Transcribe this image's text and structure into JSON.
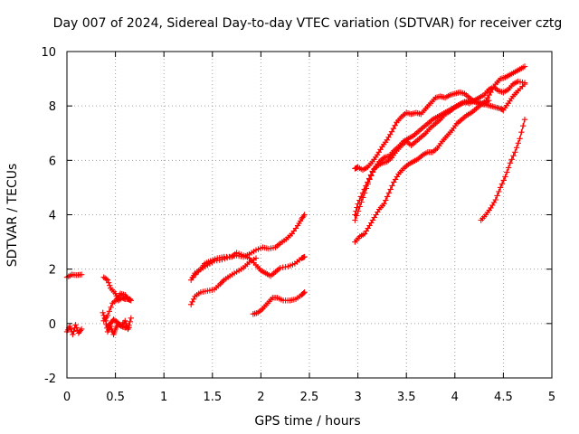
{
  "chart_data": {
    "type": "scatter",
    "title": "Day 007 of 2024, Sidereal Day-to-day VTEC variation (SDTVAR) for receiver cztg",
    "xlabel": "GPS time / hours",
    "ylabel": "SDTVAR / TECUs",
    "xlim": [
      0,
      5
    ],
    "ylim": [
      -2,
      10
    ],
    "xticks": [
      "0",
      "0.5",
      "1",
      "1.5",
      "2",
      "2.5",
      "3",
      "3.5",
      "4",
      "4.5",
      "5"
    ],
    "xtick_values": [
      0,
      0.5,
      1,
      1.5,
      2,
      2.5,
      3,
      3.5,
      4,
      4.5,
      5
    ],
    "yticks": [
      "-2",
      "0",
      "2",
      "4",
      "6",
      "8",
      "10"
    ],
    "ytick_values": [
      -2,
      0,
      2,
      4,
      6,
      8,
      10
    ],
    "grid": true,
    "marker": "+",
    "color": "#ff0000",
    "series": [
      {
        "name": "s1",
        "points": [
          [
            0.0,
            1.7
          ],
          [
            0.05,
            1.8
          ],
          [
            0.1,
            1.78
          ],
          [
            0.15,
            1.8
          ]
        ]
      },
      {
        "name": "s2",
        "points": [
          [
            0.0,
            -0.3
          ],
          [
            0.03,
            -0.1
          ],
          [
            0.06,
            -0.4
          ],
          [
            0.09,
            -0.05
          ],
          [
            0.12,
            -0.35
          ],
          [
            0.15,
            -0.2
          ]
        ]
      },
      {
        "name": "s3",
        "points": [
          [
            0.37,
            0.4
          ],
          [
            0.4,
            0.1
          ],
          [
            0.42,
            -0.3
          ],
          [
            0.45,
            -0.1
          ],
          [
            0.48,
            -0.4
          ],
          [
            0.5,
            -0.2
          ],
          [
            0.53,
            0.0
          ],
          [
            0.56,
            -0.1
          ],
          [
            0.6,
            0.1
          ],
          [
            0.63,
            -0.2
          ],
          [
            0.66,
            0.2
          ]
        ]
      },
      {
        "name": "s4",
        "points": [
          [
            0.38,
            1.7
          ],
          [
            0.42,
            1.6
          ],
          [
            0.45,
            1.3
          ],
          [
            0.5,
            1.1
          ],
          [
            0.53,
            0.85
          ],
          [
            0.57,
            0.95
          ],
          [
            0.6,
            0.9
          ],
          [
            0.65,
            0.9
          ]
        ]
      },
      {
        "name": "s5",
        "points": [
          [
            0.38,
            0.1
          ],
          [
            0.42,
            0.3
          ],
          [
            0.47,
            0.75
          ],
          [
            0.52,
            0.9
          ],
          [
            0.55,
            1.1
          ],
          [
            0.6,
            1.05
          ],
          [
            0.63,
            0.9
          ],
          [
            0.66,
            0.85
          ]
        ]
      },
      {
        "name": "s6",
        "points": [
          [
            0.42,
            -0.1
          ],
          [
            0.45,
            0.0
          ],
          [
            0.48,
            0.15
          ],
          [
            0.52,
            0.05
          ],
          [
            0.56,
            -0.1
          ],
          [
            0.6,
            -0.15
          ],
          [
            0.64,
            -0.15
          ]
        ]
      },
      {
        "name": "s7",
        "points": [
          [
            1.28,
            1.6
          ],
          [
            1.32,
            1.85
          ],
          [
            1.38,
            2.0
          ],
          [
            1.42,
            2.2
          ],
          [
            1.48,
            2.3
          ],
          [
            1.55,
            2.4
          ],
          [
            1.62,
            2.45
          ],
          [
            1.7,
            2.45
          ],
          [
            1.75,
            2.6
          ],
          [
            1.82,
            2.5
          ],
          [
            1.88,
            2.4
          ],
          [
            1.95,
            2.15
          ],
          [
            2.0,
            1.95
          ],
          [
            2.05,
            1.85
          ],
          [
            2.1,
            1.75
          ],
          [
            2.15,
            1.9
          ],
          [
            2.2,
            2.05
          ],
          [
            2.28,
            2.1
          ],
          [
            2.35,
            2.2
          ],
          [
            2.42,
            2.4
          ],
          [
            2.45,
            2.45
          ]
        ]
      },
      {
        "name": "s8",
        "points": [
          [
            1.3,
            1.7
          ],
          [
            1.38,
            2.0
          ],
          [
            1.45,
            2.15
          ],
          [
            1.52,
            2.3
          ],
          [
            1.6,
            2.35
          ],
          [
            1.68,
            2.45
          ],
          [
            1.75,
            2.5
          ],
          [
            1.82,
            2.45
          ],
          [
            1.88,
            2.55
          ],
          [
            1.95,
            2.7
          ],
          [
            2.02,
            2.8
          ],
          [
            2.08,
            2.75
          ],
          [
            2.15,
            2.8
          ],
          [
            2.2,
            2.95
          ],
          [
            2.26,
            3.1
          ],
          [
            2.32,
            3.3
          ],
          [
            2.38,
            3.6
          ],
          [
            2.42,
            3.85
          ],
          [
            2.45,
            4.0
          ]
        ]
      },
      {
        "name": "s9",
        "points": [
          [
            1.28,
            0.7
          ],
          [
            1.32,
            1.0
          ],
          [
            1.38,
            1.15
          ],
          [
            1.45,
            1.2
          ],
          [
            1.52,
            1.25
          ],
          [
            1.58,
            1.45
          ],
          [
            1.62,
            1.6
          ],
          [
            1.68,
            1.75
          ],
          [
            1.75,
            1.9
          ],
          [
            1.82,
            2.05
          ],
          [
            1.88,
            2.25
          ],
          [
            1.95,
            2.4
          ]
        ]
      },
      {
        "name": "s10",
        "points": [
          [
            1.92,
            0.35
          ],
          [
            1.97,
            0.4
          ],
          [
            2.02,
            0.55
          ],
          [
            2.07,
            0.75
          ],
          [
            2.12,
            0.95
          ],
          [
            2.17,
            0.95
          ],
          [
            2.23,
            0.85
          ],
          [
            2.3,
            0.85
          ],
          [
            2.36,
            0.9
          ],
          [
            2.42,
            1.05
          ],
          [
            2.45,
            1.15
          ]
        ]
      },
      {
        "name": "s11",
        "points": [
          [
            2.97,
            5.7
          ],
          [
            3.0,
            5.75
          ],
          [
            3.05,
            5.65
          ],
          [
            3.1,
            5.75
          ],
          [
            3.15,
            5.95
          ],
          [
            3.2,
            6.2
          ],
          [
            3.25,
            6.5
          ],
          [
            3.3,
            6.75
          ],
          [
            3.35,
            7.05
          ],
          [
            3.4,
            7.4
          ],
          [
            3.45,
            7.6
          ],
          [
            3.5,
            7.75
          ],
          [
            3.55,
            7.7
          ],
          [
            3.6,
            7.75
          ],
          [
            3.65,
            7.7
          ],
          [
            3.7,
            7.9
          ],
          [
            3.75,
            8.1
          ],
          [
            3.8,
            8.3
          ],
          [
            3.85,
            8.35
          ],
          [
            3.9,
            8.3
          ],
          [
            3.95,
            8.4
          ],
          [
            4.0,
            8.45
          ],
          [
            4.05,
            8.5
          ],
          [
            4.1,
            8.45
          ],
          [
            4.15,
            8.3
          ],
          [
            4.2,
            8.15
          ],
          [
            4.25,
            8.1
          ],
          [
            4.3,
            8.05
          ],
          [
            4.35,
            8.2
          ]
        ]
      },
      {
        "name": "s12",
        "points": [
          [
            2.97,
            4.0
          ],
          [
            3.0,
            4.4
          ],
          [
            3.05,
            4.8
          ],
          [
            3.1,
            5.2
          ],
          [
            3.15,
            5.6
          ],
          [
            3.2,
            5.8
          ],
          [
            3.25,
            5.9
          ],
          [
            3.3,
            5.95
          ],
          [
            3.35,
            6.1
          ],
          [
            3.4,
            6.35
          ],
          [
            3.45,
            6.55
          ],
          [
            3.5,
            6.7
          ],
          [
            3.55,
            6.55
          ],
          [
            3.6,
            6.7
          ],
          [
            3.65,
            6.85
          ],
          [
            3.7,
            7.0
          ],
          [
            3.75,
            7.2
          ],
          [
            3.8,
            7.35
          ],
          [
            3.85,
            7.5
          ],
          [
            3.9,
            7.7
          ],
          [
            3.95,
            7.8
          ],
          [
            4.0,
            7.95
          ],
          [
            4.05,
            8.05
          ],
          [
            4.1,
            8.15
          ],
          [
            4.15,
            8.1
          ],
          [
            4.2,
            8.2
          ],
          [
            4.25,
            8.3
          ],
          [
            4.3,
            8.4
          ],
          [
            4.35,
            8.6
          ],
          [
            4.4,
            8.7
          ],
          [
            4.45,
            8.55
          ],
          [
            4.5,
            8.5
          ],
          [
            4.55,
            8.6
          ],
          [
            4.6,
            8.8
          ],
          [
            4.65,
            8.9
          ],
          [
            4.72,
            8.85
          ]
        ]
      },
      {
        "name": "s13",
        "points": [
          [
            2.97,
            3.8
          ],
          [
            3.02,
            4.3
          ],
          [
            3.07,
            4.8
          ],
          [
            3.12,
            5.3
          ],
          [
            3.17,
            5.7
          ],
          [
            3.22,
            5.95
          ],
          [
            3.27,
            6.1
          ],
          [
            3.32,
            6.15
          ],
          [
            3.37,
            6.35
          ],
          [
            3.42,
            6.5
          ],
          [
            3.47,
            6.7
          ],
          [
            3.52,
            6.8
          ],
          [
            3.57,
            6.9
          ],
          [
            3.62,
            7.05
          ],
          [
            3.67,
            7.2
          ],
          [
            3.72,
            7.35
          ],
          [
            3.77,
            7.5
          ],
          [
            3.82,
            7.6
          ],
          [
            3.87,
            7.7
          ],
          [
            3.92,
            7.8
          ],
          [
            3.97,
            7.9
          ],
          [
            4.02,
            8.0
          ],
          [
            4.07,
            8.1
          ],
          [
            4.12,
            8.15
          ],
          [
            4.17,
            8.2
          ],
          [
            4.22,
            8.15
          ],
          [
            4.27,
            8.1
          ],
          [
            4.32,
            8.05
          ],
          [
            4.37,
            8.0
          ],
          [
            4.42,
            7.95
          ],
          [
            4.47,
            7.9
          ],
          [
            4.5,
            7.85
          ],
          [
            4.55,
            8.1
          ],
          [
            4.6,
            8.35
          ],
          [
            4.65,
            8.55
          ],
          [
            4.72,
            8.8
          ]
        ]
      },
      {
        "name": "s14",
        "points": [
          [
            2.97,
            3.0
          ],
          [
            3.02,
            3.2
          ],
          [
            3.07,
            3.3
          ],
          [
            3.12,
            3.6
          ],
          [
            3.17,
            3.9
          ],
          [
            3.22,
            4.2
          ],
          [
            3.27,
            4.4
          ],
          [
            3.32,
            4.8
          ],
          [
            3.37,
            5.2
          ],
          [
            3.42,
            5.5
          ],
          [
            3.47,
            5.7
          ],
          [
            3.52,
            5.85
          ],
          [
            3.57,
            5.95
          ],
          [
            3.62,
            6.05
          ],
          [
            3.67,
            6.2
          ],
          [
            3.72,
            6.3
          ],
          [
            3.77,
            6.3
          ],
          [
            3.82,
            6.45
          ],
          [
            3.87,
            6.7
          ],
          [
            3.92,
            6.9
          ],
          [
            3.97,
            7.1
          ],
          [
            4.02,
            7.35
          ],
          [
            4.07,
            7.5
          ],
          [
            4.12,
            7.65
          ],
          [
            4.17,
            7.75
          ],
          [
            4.22,
            7.9
          ],
          [
            4.27,
            8.05
          ],
          [
            4.32,
            8.2
          ],
          [
            4.37,
            8.5
          ],
          [
            4.42,
            8.8
          ],
          [
            4.47,
            9.0
          ],
          [
            4.52,
            9.05
          ],
          [
            4.57,
            9.15
          ],
          [
            4.62,
            9.25
          ],
          [
            4.67,
            9.35
          ],
          [
            4.72,
            9.45
          ]
        ]
      },
      {
        "name": "s15",
        "points": [
          [
            4.27,
            3.8
          ],
          [
            4.32,
            4.0
          ],
          [
            4.37,
            4.25
          ],
          [
            4.42,
            4.55
          ],
          [
            4.47,
            5.0
          ],
          [
            4.52,
            5.4
          ],
          [
            4.57,
            5.9
          ],
          [
            4.62,
            6.3
          ],
          [
            4.67,
            6.8
          ],
          [
            4.72,
            7.5
          ]
        ]
      }
    ]
  }
}
